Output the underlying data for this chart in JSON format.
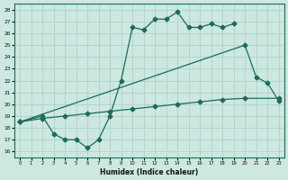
{
  "xlabel": "Humidex (Indice chaleur)",
  "xlim": [
    -0.5,
    23.5
  ],
  "ylim": [
    15.5,
    28.5
  ],
  "xticks": [
    0,
    1,
    2,
    3,
    4,
    5,
    6,
    7,
    8,
    9,
    10,
    11,
    12,
    13,
    14,
    15,
    16,
    17,
    18,
    19,
    20,
    21,
    22,
    23
  ],
  "yticks": [
    16,
    17,
    18,
    19,
    20,
    21,
    22,
    23,
    24,
    25,
    26,
    27,
    28
  ],
  "bg_color": "#cce8e0",
  "grid_color": "#a8cec8",
  "line_color": "#1a6b5a",
  "line1_x": [
    0,
    2,
    4,
    6,
    8,
    10,
    12,
    14,
    16,
    18,
    20,
    23
  ],
  "line1_y": [
    18.5,
    18.8,
    19.0,
    19.2,
    19.4,
    19.6,
    19.8,
    20.0,
    20.2,
    20.4,
    20.5,
    20.5
  ],
  "line2_x": [
    0,
    20,
    21,
    22,
    23
  ],
  "line2_y": [
    18.5,
    25.0,
    22.3,
    21.8,
    20.3
  ],
  "line3_x": [
    0,
    2,
    3,
    4,
    5,
    6,
    7,
    8,
    9,
    10,
    11,
    12,
    13,
    14,
    15,
    16,
    17,
    18,
    19
  ],
  "line3_y": [
    18.5,
    19.0,
    17.5,
    17.0,
    17.0,
    16.3,
    17.0,
    19.0,
    22.0,
    26.5,
    26.3,
    27.2,
    27.2,
    27.8,
    26.5,
    26.5,
    26.8,
    26.5,
    26.8
  ]
}
